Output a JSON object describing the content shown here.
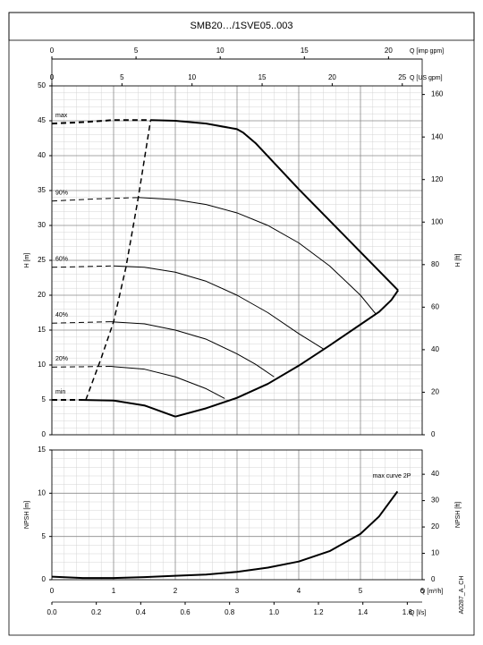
{
  "chart_data": [
    {
      "type": "line",
      "title": "SMB20…/1SVE05..003",
      "ylabel": "H [m]",
      "ylim": [
        0,
        50
      ],
      "yticks": [
        0,
        5,
        10,
        15,
        20,
        25,
        30,
        35,
        40,
        45,
        50
      ],
      "y2label": "H [ft]",
      "y2lim": [
        0,
        164.04
      ],
      "y2ticks": [
        0,
        20,
        40,
        60,
        80,
        100,
        120,
        140,
        160
      ],
      "xlim": [
        0,
        6
      ],
      "xticks": [
        0,
        1,
        2,
        3,
        4,
        5,
        6
      ],
      "xtick_labels": false,
      "x_axes": [
        {
          "label": "Q [imp gpm]",
          "xlim": [
            0,
            22.0
          ],
          "xticks": [
            0,
            5,
            10,
            15,
            20
          ],
          "row": 1
        },
        {
          "label": "Q [US gpm]",
          "xlim": [
            0,
            26.42
          ],
          "xticks": [
            0,
            5,
            10,
            15,
            20,
            25
          ],
          "row": 0
        }
      ],
      "grid": true,
      "minor_grid": true,
      "color": "#000000",
      "series": [
        {
          "name": "max",
          "dash": true,
          "width": 2,
          "x": [
            0,
            0.5,
            1,
            1.6
          ],
          "values": [
            44.6,
            44.8,
            45.1,
            45.1
          ]
        },
        {
          "dash": false,
          "width": 2,
          "x": [
            1.6,
            2,
            2.5,
            3,
            3.1,
            3.3,
            4,
            5,
            5.61
          ],
          "values": [
            45.1,
            45,
            44.6,
            43.8,
            43.3,
            41.8,
            35.2,
            26.2,
            20.7
          ]
        },
        {
          "dash": false,
          "width": 2,
          "x": [
            2,
            2.5,
            3,
            3.5,
            4,
            4.5,
            5,
            5.3,
            5.5,
            5.61
          ],
          "values": [
            2.6,
            3.8,
            5.3,
            7.3,
            9.9,
            12.8,
            15.8,
            17.6,
            19.3,
            20.7
          ]
        },
        {
          "name": "90%",
          "dash": true,
          "width": 1,
          "x": [
            0,
            0.7,
            1.4
          ],
          "values": [
            33.5,
            33.8,
            34
          ]
        },
        {
          "dash": false,
          "width": 1,
          "x": [
            1.4,
            2,
            2.5,
            3,
            3.5,
            4,
            4.5,
            5,
            5.25
          ],
          "values": [
            34,
            33.7,
            33,
            31.8,
            30,
            27.5,
            24.2,
            20,
            17.3
          ]
        },
        {
          "name": "60%",
          "dash": true,
          "width": 1,
          "x": [
            0,
            0.5,
            1
          ],
          "values": [
            24,
            24.1,
            24.2
          ]
        },
        {
          "dash": false,
          "width": 1,
          "x": [
            1,
            1.5,
            2,
            2.5,
            3,
            3.5,
            4,
            4.4
          ],
          "values": [
            24.2,
            24,
            23.3,
            22,
            20,
            17.5,
            14.5,
            12.3
          ]
        },
        {
          "name": "40%",
          "dash": true,
          "width": 1,
          "x": [
            0,
            0.5,
            0.95
          ],
          "values": [
            16,
            16.1,
            16.2
          ]
        },
        {
          "dash": false,
          "width": 1,
          "x": [
            0.95,
            1.5,
            2,
            2.5,
            3,
            3.3,
            3.6
          ],
          "values": [
            16.2,
            15.9,
            15,
            13.7,
            11.6,
            10.1,
            8.3
          ]
        },
        {
          "name": "20%",
          "dash": true,
          "width": 1,
          "x": [
            0,
            0.5,
            0.95
          ],
          "values": [
            9.7,
            9.75,
            9.8
          ]
        },
        {
          "dash": false,
          "width": 1,
          "x": [
            0.95,
            1.5,
            2,
            2.5,
            2.8
          ],
          "values": [
            9.8,
            9.4,
            8.3,
            6.6,
            5.2
          ]
        },
        {
          "name": "min",
          "dash": true,
          "width": 2,
          "x": [
            0,
            0.45
          ],
          "values": [
            5,
            5
          ]
        },
        {
          "dash": false,
          "width": 2,
          "x": [
            0.45,
            1,
            1.5,
            2
          ],
          "values": [
            5,
            4.9,
            4.2,
            2.6
          ]
        },
        {
          "dash": true,
          "width": 1.5,
          "x": [
            0.55,
            0.8,
            1,
            1.2,
            1.4,
            1.6
          ],
          "values": [
            5,
            11,
            16.2,
            24,
            34,
            45.1
          ]
        }
      ]
    },
    {
      "type": "line",
      "ylabel": "NPSH [m]",
      "ylim": [
        0,
        15
      ],
      "yticks": [
        0,
        5,
        10,
        15
      ],
      "y2label": "NPSH [ft]",
      "y2lim": [
        0,
        49.21
      ],
      "y2ticks": [
        0,
        10,
        20,
        30,
        40
      ],
      "xlim": [
        0,
        6
      ],
      "xticks": [
        0,
        1,
        2,
        3,
        4,
        5,
        6
      ],
      "xtick_labels": true,
      "xlabel": "Q [m³/h]",
      "x_axes": [
        {
          "label": "Q [l/s]",
          "xlim": [
            0,
            1.667
          ],
          "xticks": [
            {
              "value": 0,
              "label": "0.0"
            },
            0.2,
            0.4,
            0.6,
            0.8,
            {
              "value": 1,
              "label": "1.0"
            },
            1.2,
            1.4,
            1.6
          ],
          "row": -1
        }
      ],
      "grid": true,
      "minor_grid": true,
      "color": "#000000",
      "side_note": "A0287_A_CH",
      "series": [
        {
          "name": "max curve 2P",
          "dash": false,
          "width": 2,
          "label_at_end": true,
          "x": [
            0,
            0.5,
            1,
            1.5,
            2,
            2.5,
            3,
            3.5,
            4,
            4.5,
            5,
            5.3,
            5.6
          ],
          "values": [
            0.35,
            0.2,
            0.2,
            0.3,
            0.45,
            0.6,
            0.9,
            1.4,
            2.1,
            3.3,
            5.3,
            7.3,
            10.2
          ]
        }
      ]
    }
  ]
}
